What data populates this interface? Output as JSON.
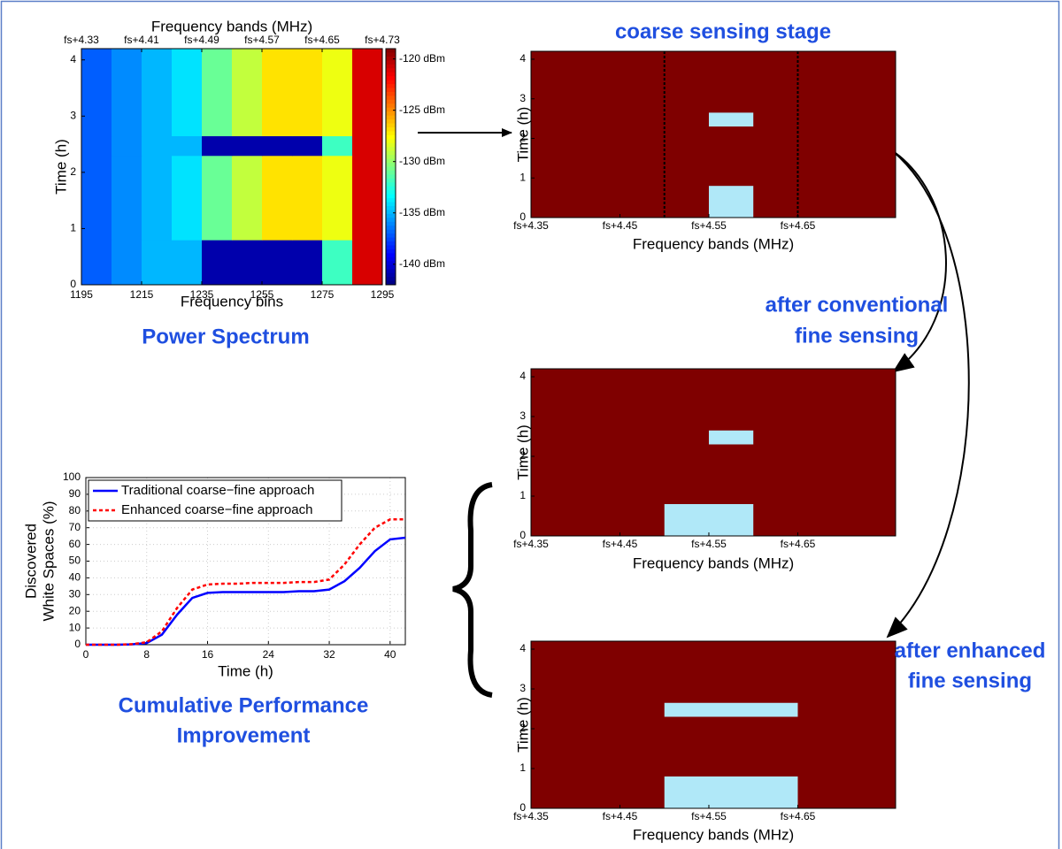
{
  "chart_data": [
    {
      "type": "heatmap",
      "title": "Power Spectrum",
      "xlabel": "Frequency bins",
      "ylabel": "Time (h)",
      "x2label": "Frequency bands (MHz)",
      "xlim": [
        1195,
        1295
      ],
      "xticks": [
        1195,
        1215,
        1235,
        1255,
        1275,
        1295
      ],
      "x2lim": [
        4.33,
        4.73
      ],
      "x2ticks": [
        {
          "value": 4.33,
          "label": "fs+4.33"
        },
        {
          "value": 4.41,
          "label": "fs+4.41"
        },
        {
          "value": 4.49,
          "label": "fs+4.49"
        },
        {
          "value": 4.57,
          "label": "fs+4.57"
        },
        {
          "value": 4.65,
          "label": "fs+4.65"
        },
        {
          "value": 4.73,
          "label": "fs+4.73"
        }
      ],
      "ylim": [
        0,
        4.2
      ],
      "yticks": [
        0,
        1,
        2,
        3,
        4
      ],
      "x_edges": [
        1195,
        1205,
        1215,
        1225,
        1235,
        1245,
        1255,
        1265,
        1275,
        1285,
        1295
      ],
      "y_edges": [
        0,
        0.8,
        2.3,
        2.65,
        4.2
      ],
      "z": [
        [
          -137,
          -136,
          -135,
          -135,
          -141,
          -141,
          -141,
          -141,
          -132,
          -121
        ],
        [
          -137,
          -136,
          -135,
          -134,
          -131,
          -129,
          -127,
          -127,
          -128,
          -121
        ],
        [
          -137,
          -136,
          -135,
          -135,
          -141,
          -141,
          -141,
          -141,
          -132,
          -121
        ],
        [
          -137,
          -136,
          -135,
          -134,
          -131,
          -129,
          -127,
          -127,
          -128,
          -121
        ]
      ],
      "clim": [
        -142,
        -119
      ],
      "cticks": [
        {
          "value": -120,
          "label": "-120 dBm"
        },
        {
          "value": -125,
          "label": "-125 dBm"
        },
        {
          "value": -130,
          "label": "-130 dBm"
        },
        {
          "value": -135,
          "label": "-135 dBm"
        },
        {
          "value": -140,
          "label": "-140 dBm"
        }
      ]
    },
    {
      "type": "occupancy",
      "title": "coarse sensing stage",
      "xlabel": "Frequency bands (MHz)",
      "ylabel": "Time (h)",
      "xlim": [
        4.35,
        4.76
      ],
      "xticks": [
        {
          "value": 4.35,
          "label": "fs+4.35"
        },
        {
          "value": 4.45,
          "label": "fs+4.45"
        },
        {
          "value": 4.55,
          "label": "fs+4.55"
        },
        {
          "value": 4.65,
          "label": "fs+4.65"
        }
      ],
      "ylim": [
        0,
        4.2
      ],
      "yticks": [
        0,
        1,
        2,
        3,
        4
      ],
      "occupied_color": "#7f0000",
      "free_color": "#b0e8f8",
      "free_blocks": [
        {
          "x": [
            4.55,
            4.6
          ],
          "y": [
            0,
            0.8
          ]
        },
        {
          "x": [
            4.55,
            4.6
          ],
          "y": [
            2.3,
            2.65
          ]
        }
      ],
      "dashed_x": [
        4.5,
        4.65
      ]
    },
    {
      "type": "occupancy",
      "title": [
        "after conventional",
        "fine sensing"
      ],
      "xlabel": "Frequency bands (MHz)",
      "ylabel": "Time (h)",
      "xlim": [
        4.35,
        4.76
      ],
      "xticks": [
        {
          "value": 4.35,
          "label": "fs+4.35"
        },
        {
          "value": 4.45,
          "label": "fs+4.45"
        },
        {
          "value": 4.55,
          "label": "fs+4.55"
        },
        {
          "value": 4.65,
          "label": "fs+4.65"
        }
      ],
      "ylim": [
        0,
        4.2
      ],
      "yticks": [
        0,
        1,
        2,
        3,
        4
      ],
      "occupied_color": "#7f0000",
      "free_color": "#b0e8f8",
      "free_blocks": [
        {
          "x": [
            4.5,
            4.6
          ],
          "y": [
            0,
            0.8
          ]
        },
        {
          "x": [
            4.55,
            4.6
          ],
          "y": [
            2.3,
            2.65
          ]
        }
      ]
    },
    {
      "type": "occupancy",
      "title": [
        "after enhanced",
        "fine sensing"
      ],
      "xlabel": "Frequency bands (MHz)",
      "ylabel": "Time (h)",
      "xlim": [
        4.35,
        4.76
      ],
      "xticks": [
        {
          "value": 4.35,
          "label": "fs+4.35"
        },
        {
          "value": 4.45,
          "label": "fs+4.45"
        },
        {
          "value": 4.55,
          "label": "fs+4.55"
        },
        {
          "value": 4.65,
          "label": "fs+4.65"
        }
      ],
      "ylim": [
        0,
        4.2
      ],
      "yticks": [
        0,
        1,
        2,
        3,
        4
      ],
      "occupied_color": "#7f0000",
      "free_color": "#b0e8f8",
      "free_blocks": [
        {
          "x": [
            4.5,
            4.65
          ],
          "y": [
            0,
            0.8
          ]
        },
        {
          "x": [
            4.5,
            4.65
          ],
          "y": [
            2.3,
            2.65
          ]
        }
      ]
    },
    {
      "type": "line",
      "title": [
        "Cumulative Performance",
        "Improvement"
      ],
      "xlabel": "Time (h)",
      "ylabel": [
        "Discovered",
        "White Spaces (%)"
      ],
      "xlim": [
        0,
        42
      ],
      "xticks": [
        0,
        8,
        16,
        24,
        32,
        40
      ],
      "ylim": [
        0,
        100
      ],
      "yticks": [
        0,
        10,
        20,
        30,
        40,
        50,
        60,
        70,
        80,
        90,
        100
      ],
      "grid": true,
      "legend": "upper left",
      "x": [
        0,
        2,
        4,
        6,
        8,
        10,
        12,
        14,
        16,
        18,
        20,
        22,
        24,
        26,
        28,
        30,
        32,
        34,
        36,
        38,
        40,
        42
      ],
      "series": [
        {
          "name": "Traditional coarse−fine approach",
          "color": "#0000ff",
          "dashed": false,
          "values": [
            0,
            0,
            0,
            0.2,
            1,
            6,
            18,
            28,
            31,
            31.5,
            31.5,
            31.5,
            31.5,
            31.5,
            32,
            32,
            33,
            38,
            46,
            56,
            63,
            64
          ]
        },
        {
          "name": "Enhanced coarse−fine approach",
          "color": "#ff0000",
          "dashed": true,
          "values": [
            0,
            0,
            0,
            0.3,
            1.5,
            8,
            22,
            33,
            36,
            36.5,
            36.5,
            37,
            37,
            37,
            37.5,
            37.5,
            39,
            48,
            60,
            70,
            75,
            75
          ]
        }
      ]
    }
  ]
}
